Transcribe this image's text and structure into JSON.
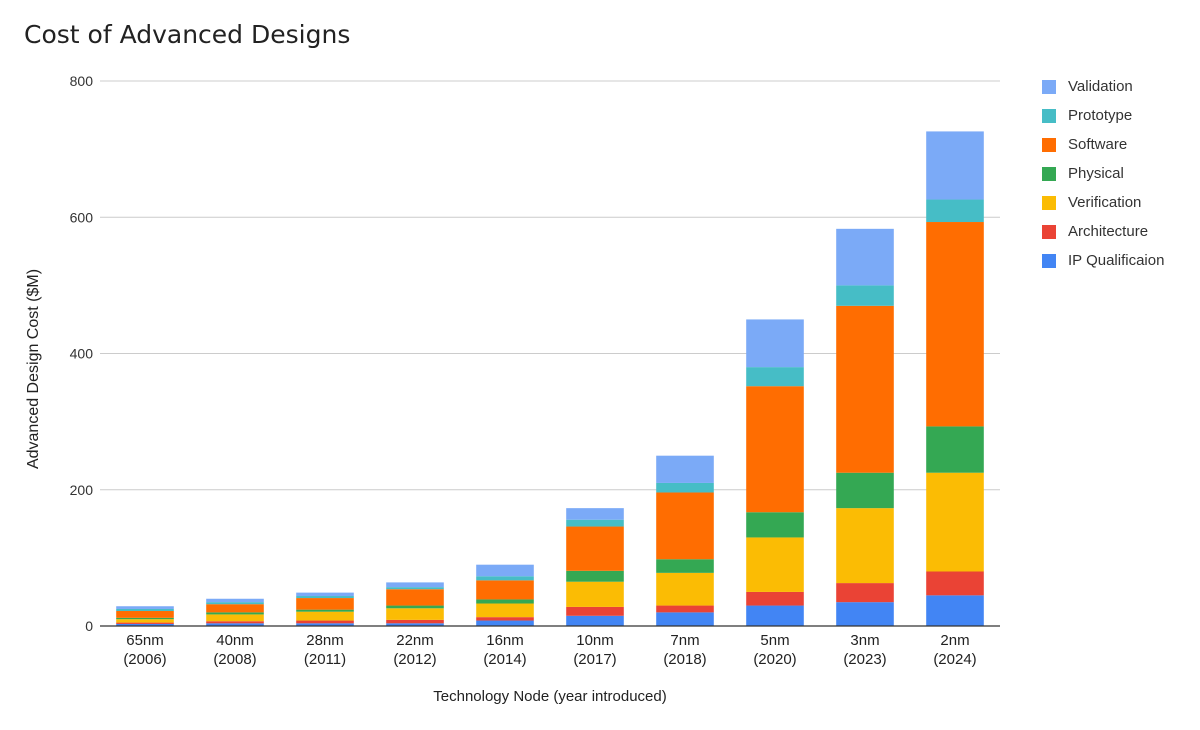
{
  "chart_data": {
    "type": "bar",
    "stacked": true,
    "title": "Cost of Advanced Designs",
    "xlabel": "Technology Node (year introduced)",
    "ylabel": "Advanced Design Cost ($M)",
    "ylim": [
      0,
      800
    ],
    "yticks": [
      0,
      200,
      400,
      600,
      800
    ],
    "grid": true,
    "legend_position": "right",
    "categories": [
      [
        "65nm",
        "(2006)"
      ],
      [
        "40nm",
        "(2008)"
      ],
      [
        "28nm",
        "(2011)"
      ],
      [
        "22nm",
        "(2012)"
      ],
      [
        "16nm",
        "(2014)"
      ],
      [
        "10nm",
        "(2017)"
      ],
      [
        "7nm",
        "(2018)"
      ],
      [
        "5nm",
        "(2020)"
      ],
      [
        "3nm",
        "(2023)"
      ],
      [
        "2nm",
        "(2024)"
      ]
    ],
    "series": [
      {
        "name": "IP Qualificaion",
        "color": "#4285f4",
        "values": [
          3,
          4,
          4,
          4,
          8,
          15,
          20,
          30,
          35,
          45
        ]
      },
      {
        "name": "Architecture",
        "color": "#ea4335",
        "values": [
          2,
          3,
          4,
          5,
          5,
          13,
          10,
          20,
          28,
          35
        ]
      },
      {
        "name": "Verification",
        "color": "#fbbc04",
        "values": [
          5,
          10,
          13,
          17,
          20,
          37,
          48,
          80,
          110,
          145
        ]
      },
      {
        "name": "Physical",
        "color": "#34a853",
        "values": [
          2,
          3,
          3,
          4,
          6,
          16,
          20,
          37,
          52,
          68
        ]
      },
      {
        "name": "Software",
        "color": "#ff6d01",
        "values": [
          10,
          12,
          17,
          24,
          28,
          65,
          98,
          185,
          245,
          300
        ]
      },
      {
        "name": "Prototype",
        "color": "#46bdc6",
        "values": [
          3,
          3,
          3,
          3,
          6,
          10,
          14,
          28,
          30,
          33
        ]
      },
      {
        "name": "Validation",
        "color": "#7baaf7",
        "values": [
          4,
          5,
          5,
          7,
          17,
          17,
          40,
          70,
          83,
          100
        ]
      }
    ],
    "legend_order": [
      "Validation",
      "Prototype",
      "Software",
      "Physical",
      "Verification",
      "Architecture",
      "IP Qualificaion"
    ]
  }
}
